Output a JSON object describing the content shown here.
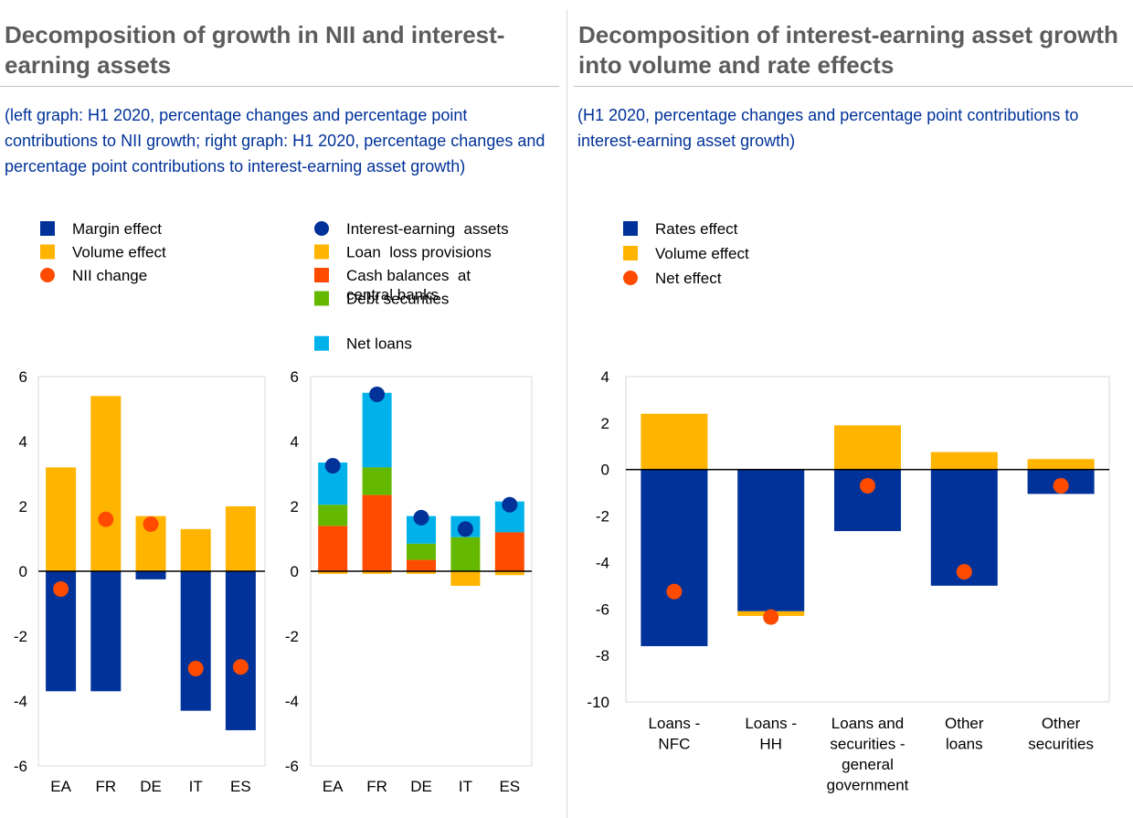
{
  "left_panel": {
    "title": "Decomposition of growth in NII and interest-earning assets",
    "subtitle": "(left graph: H1 2020, percentage changes and percentage point contributions to NII growth; right graph: H1 2020, percentage changes and percentage point contributions to interest-earning asset growth)"
  },
  "right_panel": {
    "title": "Decomposition of interest-earning asset growth into volume and rate effects",
    "subtitle": "(H1 2020, percentage changes and percentage point contributions to interest-earning asset growth)"
  },
  "chart_data": [
    {
      "id": "nii",
      "type": "bar",
      "stacked": true,
      "categories": [
        "EA",
        "FR",
        "DE",
        "IT",
        "ES"
      ],
      "ylim": [
        -6,
        6
      ],
      "yticks": [
        6,
        4,
        2,
        0,
        -2,
        -4,
        -6
      ],
      "series": [
        {
          "name": "Margin effect",
          "kind": "bar",
          "color": "#003299",
          "values": [
            -3.7,
            -3.7,
            -0.25,
            -4.3,
            -4.9
          ]
        },
        {
          "name": "Volume effect",
          "kind": "bar",
          "color": "#ffb400",
          "values": [
            3.2,
            5.4,
            1.7,
            1.3,
            2.0
          ]
        },
        {
          "name": "NII change",
          "kind": "dot",
          "color": "#ff4b00",
          "values": [
            -0.55,
            1.6,
            1.45,
            -3.0,
            -2.95
          ]
        }
      ],
      "legend_placement": "top-left",
      "grid": false
    },
    {
      "id": "assets",
      "type": "bar",
      "stacked": true,
      "categories": [
        "EA",
        "FR",
        "DE",
        "IT",
        "ES"
      ],
      "ylim": [
        -6,
        6
      ],
      "yticks": [
        6,
        4,
        2,
        0,
        -2,
        -4,
        -6
      ],
      "series": [
        {
          "name": "Interest-earning  assets",
          "kind": "dot",
          "color": "#003299",
          "values": [
            3.25,
            5.45,
            1.65,
            1.3,
            2.05
          ]
        },
        {
          "name": "Loan  loss provisions",
          "kind": "bar",
          "color": "#ffb400",
          "values": [
            -0.08,
            -0.08,
            -0.08,
            -0.45,
            -0.12
          ]
        },
        {
          "name": "Cash balances  at central banks",
          "label_lines": [
            "Cash balances  at",
            "central banks"
          ],
          "kind": "bar",
          "color": "#ff4b00",
          "values": [
            1.4,
            2.35,
            0.35,
            0.0,
            1.2
          ]
        },
        {
          "name": "Debt securities",
          "kind": "bar",
          "color": "#65b800",
          "values": [
            0.65,
            0.85,
            0.5,
            1.05,
            0.0
          ]
        },
        {
          "name": "Net loans",
          "kind": "bar",
          "color": "#00b1ea",
          "values": [
            1.3,
            2.3,
            0.85,
            0.65,
            0.95
          ]
        }
      ],
      "legend_placement": "top-left",
      "grid": false
    },
    {
      "id": "rate_volume",
      "type": "bar",
      "stacked": true,
      "categories": [
        "Loans - NFC",
        "Loans - HH",
        "Loans and securities - general government",
        "Other loans",
        "Other securities"
      ],
      "category_lines": [
        [
          "Loans -",
          "NFC"
        ],
        [
          "Loans -",
          "HH"
        ],
        [
          "Loans and",
          "securities -",
          "general",
          "government"
        ],
        [
          "Other",
          "loans"
        ],
        [
          "Other",
          "securities"
        ]
      ],
      "ylim": [
        -10,
        4
      ],
      "yticks": [
        4,
        2,
        0,
        -2,
        -4,
        -6,
        -8,
        -10
      ],
      "series": [
        {
          "name": "Rates effect",
          "kind": "bar",
          "color": "#003299",
          "values": [
            -7.6,
            -6.1,
            -2.65,
            -5.0,
            -1.05
          ]
        },
        {
          "name": "Volume effect",
          "kind": "bar",
          "color": "#ffb400",
          "values": [
            2.4,
            -0.2,
            1.9,
            0.75,
            0.45
          ]
        },
        {
          "name": "Net effect",
          "kind": "dot",
          "color": "#ff4b00",
          "values": [
            -5.25,
            -6.35,
            -0.7,
            -4.4,
            -0.7
          ]
        }
      ],
      "legend_placement": "top-left",
      "grid": false
    }
  ]
}
